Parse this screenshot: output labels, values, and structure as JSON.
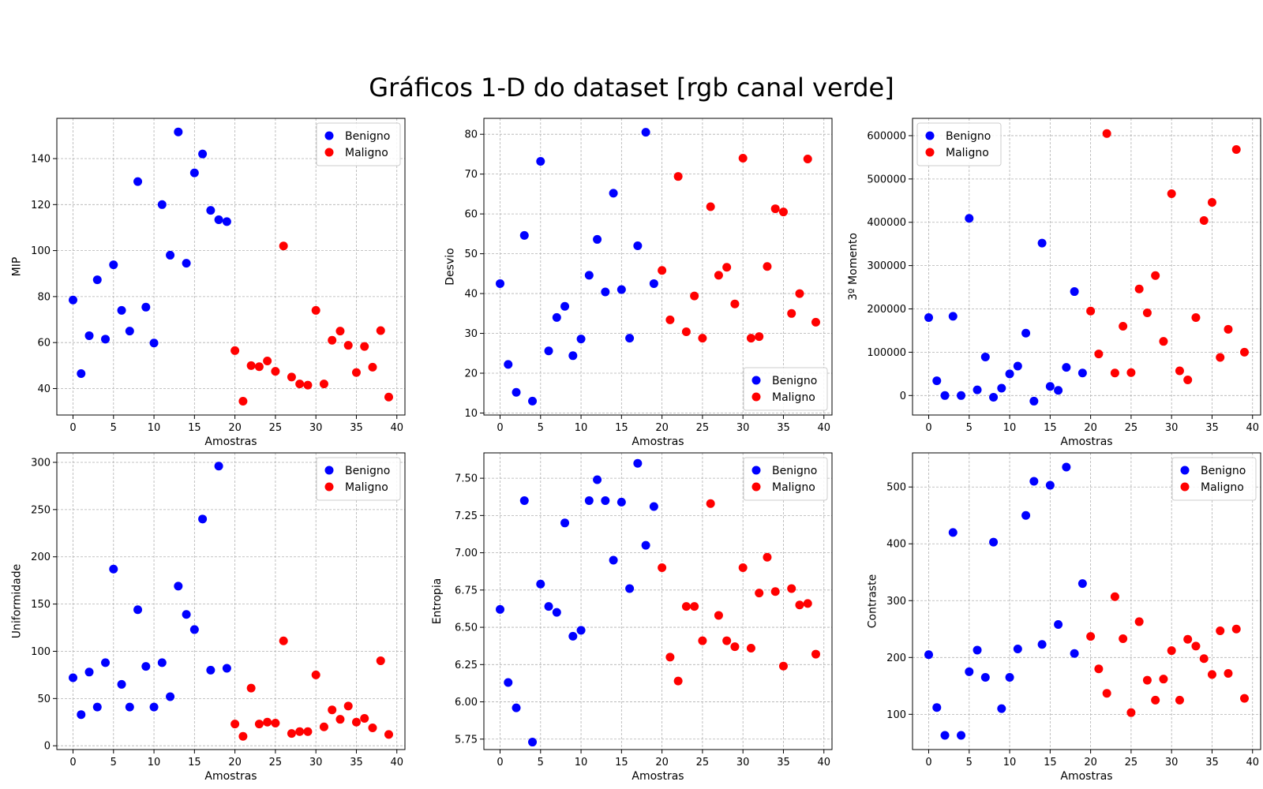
{
  "suptitle": "Gráficos 1-D do dataset [rgb canal verde]",
  "colors": {
    "benigno": "#0000ff",
    "maligno": "#ff0000",
    "grid": "#b0b0b0"
  },
  "chart_data": [
    {
      "type": "scatter",
      "ylabel": "MIP",
      "xlabel": "Amostras",
      "xlim": [
        -2,
        41
      ],
      "ylim": [
        28.5,
        157.5
      ],
      "xticks": [
        0,
        5,
        10,
        15,
        20,
        25,
        30,
        35,
        40
      ],
      "yticks": [
        40,
        60,
        80,
        100,
        120,
        140
      ],
      "ytick_labels": [
        "40",
        "60",
        "80",
        "100",
        "120",
        "140"
      ],
      "grid": true,
      "legend_position": "top-right",
      "series": [
        {
          "name": "Benigno",
          "color": "#0000ff",
          "x": [
            0,
            1,
            2,
            3,
            4,
            5,
            6,
            7,
            8,
            9,
            10,
            11,
            12,
            13,
            14,
            15,
            16,
            17,
            18,
            19
          ],
          "y": [
            78.5,
            46.5,
            63,
            87.3,
            61.5,
            93.8,
            74,
            65,
            130,
            75.4,
            59.8,
            120,
            98,
            151.6,
            94.5,
            133.8,
            142,
            117.5,
            113.4,
            112.6
          ]
        },
        {
          "name": "Maligno",
          "color": "#ff0000",
          "x": [
            20,
            21,
            22,
            23,
            24,
            25,
            26,
            27,
            28,
            29,
            30,
            31,
            32,
            33,
            34,
            35,
            36,
            37,
            38,
            39
          ],
          "y": [
            56.5,
            34.5,
            50,
            49.5,
            52,
            47.5,
            102,
            45,
            42,
            41.5,
            74,
            42,
            61,
            65,
            58.8,
            47,
            58.3,
            49.3,
            65.2,
            36.3
          ]
        }
      ]
    },
    {
      "type": "scatter",
      "ylabel": "Desvio",
      "xlabel": "Amostras",
      "xlim": [
        -2,
        41
      ],
      "ylim": [
        9.5,
        84
      ],
      "xticks": [
        0,
        5,
        10,
        15,
        20,
        25,
        30,
        35,
        40
      ],
      "yticks": [
        10,
        20,
        30,
        40,
        50,
        60,
        70,
        80
      ],
      "ytick_labels": [
        "10",
        "20",
        "30",
        "40",
        "50",
        "60",
        "70",
        "80"
      ],
      "grid": true,
      "legend_position": "bottom-right",
      "series": [
        {
          "name": "Benigno",
          "color": "#0000ff",
          "x": [
            0,
            1,
            2,
            3,
            4,
            5,
            6,
            7,
            8,
            9,
            10,
            11,
            12,
            13,
            14,
            15,
            16,
            17,
            18,
            19
          ],
          "y": [
            42.5,
            22.2,
            15.2,
            54.6,
            13,
            73.2,
            25.6,
            34,
            36.8,
            24.4,
            28.6,
            44.6,
            53.6,
            40.4,
            65.2,
            41,
            28.8,
            52,
            80.5,
            42.5
          ]
        },
        {
          "name": "Maligno",
          "color": "#ff0000",
          "x": [
            20,
            21,
            22,
            23,
            24,
            25,
            26,
            27,
            28,
            29,
            30,
            31,
            32,
            33,
            34,
            35,
            36,
            37,
            38,
            39
          ],
          "y": [
            45.8,
            33.4,
            69.4,
            30.4,
            39.4,
            28.8,
            61.8,
            44.6,
            46.6,
            37.4,
            74,
            28.8,
            29.2,
            46.8,
            61.3,
            60.5,
            35,
            40,
            73.8,
            32.8
          ]
        }
      ]
    },
    {
      "type": "scatter",
      "ylabel": "3º Momento",
      "xlabel": "Amostras",
      "xlim": [
        -2,
        41
      ],
      "ylim": [
        -45000,
        640000
      ],
      "xticks": [
        0,
        5,
        10,
        15,
        20,
        25,
        30,
        35,
        40
      ],
      "yticks": [
        0,
        100000,
        200000,
        300000,
        400000,
        500000,
        600000
      ],
      "ytick_labels": [
        "0",
        "100000",
        "200000",
        "300000",
        "400000",
        "500000",
        "600000"
      ],
      "grid": true,
      "legend_position": "top-left",
      "series": [
        {
          "name": "Benigno",
          "color": "#0000ff",
          "x": [
            0,
            1,
            2,
            3,
            4,
            5,
            6,
            7,
            8,
            9,
            10,
            11,
            12,
            13,
            14,
            15,
            16,
            17,
            18,
            19
          ],
          "y": [
            180000,
            34000,
            0,
            183000,
            0,
            409000,
            13000,
            89000,
            -4000,
            17000,
            50000,
            68000,
            144000,
            -13000,
            352000,
            21000,
            12000,
            65000,
            240000,
            52000
          ]
        },
        {
          "name": "Maligno",
          "color": "#ff0000",
          "x": [
            20,
            21,
            22,
            23,
            24,
            25,
            26,
            27,
            28,
            29,
            30,
            31,
            32,
            33,
            34,
            35,
            36,
            37,
            38,
            39
          ],
          "y": [
            195000,
            96000,
            605000,
            52000,
            160000,
            53000,
            246000,
            191000,
            277000,
            125000,
            466000,
            57000,
            36000,
            180000,
            404000,
            446000,
            88000,
            153000,
            568000,
            100000
          ]
        }
      ]
    },
    {
      "type": "scatter",
      "ylabel": "Uniformidade",
      "xlabel": "Amostras",
      "xlim": [
        -2,
        41
      ],
      "ylim": [
        -4,
        310
      ],
      "xticks": [
        0,
        5,
        10,
        15,
        20,
        25,
        30,
        35,
        40
      ],
      "yticks": [
        0,
        50,
        100,
        150,
        200,
        250,
        300
      ],
      "ytick_labels": [
        "0",
        "50",
        "100",
        "150",
        "200",
        "250",
        "300"
      ],
      "grid": true,
      "legend_position": "top-right",
      "series": [
        {
          "name": "Benigno",
          "color": "#0000ff",
          "x": [
            0,
            1,
            2,
            3,
            4,
            5,
            6,
            7,
            8,
            9,
            10,
            11,
            12,
            13,
            14,
            15,
            16,
            17,
            18,
            19
          ],
          "y": [
            72,
            33,
            78,
            41,
            88,
            187,
            65,
            41,
            144,
            84,
            41,
            88,
            52,
            169,
            139,
            123,
            240,
            80,
            296,
            82
          ]
        },
        {
          "name": "Maligno",
          "color": "#ff0000",
          "x": [
            20,
            21,
            22,
            23,
            24,
            25,
            26,
            27,
            28,
            29,
            30,
            31,
            32,
            33,
            34,
            35,
            36,
            37,
            38,
            39
          ],
          "y": [
            23,
            10,
            61,
            23,
            25,
            24,
            111,
            13,
            15,
            15,
            75,
            20,
            38,
            28,
            42,
            25,
            29,
            19,
            90,
            12
          ]
        }
      ]
    },
    {
      "type": "scatter",
      "ylabel": "Entropia",
      "xlabel": "Amostras",
      "xlim": [
        -2,
        41
      ],
      "ylim": [
        5.68,
        7.67
      ],
      "xticks": [
        0,
        5,
        10,
        15,
        20,
        25,
        30,
        35,
        40
      ],
      "yticks": [
        5.75,
        6.0,
        6.25,
        6.5,
        6.75,
        7.0,
        7.25,
        7.5
      ],
      "ytick_labels": [
        "5.75",
        "6.00",
        "6.25",
        "6.50",
        "6.75",
        "7.00",
        "7.25",
        "7.50"
      ],
      "grid": true,
      "legend_position": "top-right",
      "series": [
        {
          "name": "Benigno",
          "color": "#0000ff",
          "x": [
            0,
            1,
            2,
            3,
            4,
            5,
            6,
            7,
            8,
            9,
            10,
            11,
            12,
            13,
            14,
            15,
            16,
            17,
            18,
            19
          ],
          "y": [
            6.62,
            6.13,
            5.96,
            7.35,
            5.73,
            6.79,
            6.64,
            6.6,
            7.2,
            6.44,
            6.48,
            7.35,
            7.49,
            7.35,
            6.95,
            7.34,
            6.76,
            7.6,
            7.05,
            7.31
          ]
        },
        {
          "name": "Maligno",
          "color": "#ff0000",
          "x": [
            20,
            21,
            22,
            23,
            24,
            25,
            26,
            27,
            28,
            29,
            30,
            31,
            32,
            33,
            34,
            35,
            36,
            37,
            38,
            39
          ],
          "y": [
            6.9,
            6.3,
            6.14,
            6.64,
            6.64,
            6.41,
            7.33,
            6.58,
            6.41,
            6.37,
            6.9,
            6.36,
            6.73,
            6.97,
            6.74,
            6.24,
            6.76,
            6.65,
            6.66,
            6.32
          ]
        }
      ]
    },
    {
      "type": "scatter",
      "ylabel": "Contraste",
      "xlabel": "Amostras",
      "xlim": [
        -2,
        41
      ],
      "ylim": [
        38,
        560
      ],
      "xticks": [
        0,
        5,
        10,
        15,
        20,
        25,
        30,
        35,
        40
      ],
      "yticks": [
        100,
        200,
        300,
        400,
        500
      ],
      "ytick_labels": [
        "100",
        "200",
        "300",
        "400",
        "500"
      ],
      "grid": true,
      "legend_position": "top-right",
      "series": [
        {
          "name": "Benigno",
          "color": "#0000ff",
          "x": [
            0,
            1,
            2,
            3,
            4,
            5,
            6,
            7,
            8,
            9,
            10,
            11,
            12,
            13,
            14,
            15,
            16,
            17,
            18,
            19
          ],
          "y": [
            205,
            112,
            63,
            420,
            63,
            175,
            213,
            165,
            403,
            110,
            165,
            215,
            450,
            510,
            223,
            503,
            258,
            535,
            207,
            330
          ]
        },
        {
          "name": "Maligno",
          "color": "#ff0000",
          "x": [
            20,
            21,
            22,
            23,
            24,
            25,
            26,
            27,
            28,
            29,
            30,
            31,
            32,
            33,
            34,
            35,
            36,
            37,
            38,
            39
          ],
          "y": [
            237,
            180,
            137,
            307,
            233,
            103,
            263,
            160,
            125,
            162,
            212,
            125,
            232,
            220,
            198,
            170,
            247,
            172,
            250,
            128
          ]
        }
      ]
    }
  ]
}
